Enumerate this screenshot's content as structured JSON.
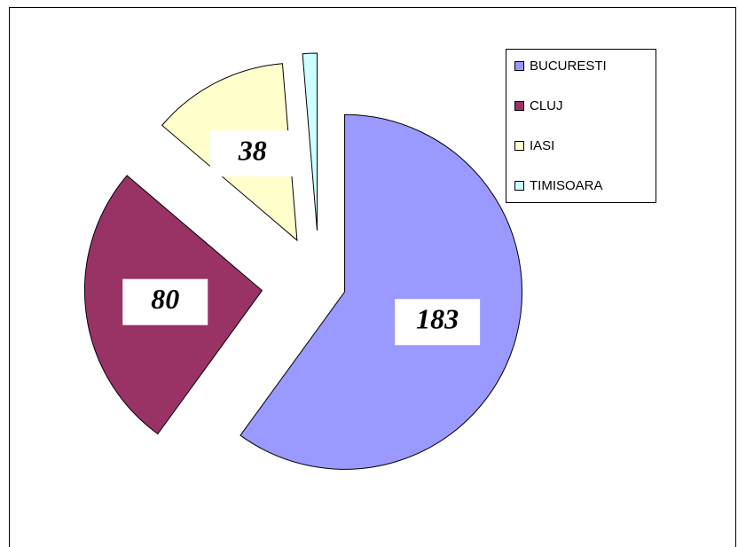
{
  "chart_data": {
    "type": "pie",
    "categories": [
      "BUCURESTI",
      "CLUJ",
      "IASI",
      "TIMISOARA"
    ],
    "values": [
      183,
      80,
      38,
      4
    ],
    "colors": [
      "#9999ff",
      "#993366",
      "#ffffcc",
      "#ccffff"
    ],
    "legend": "top-right"
  }
}
